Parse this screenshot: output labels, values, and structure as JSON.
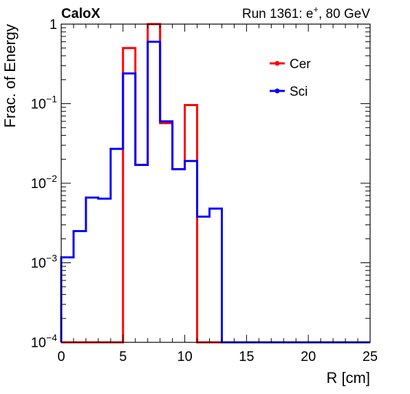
{
  "chart_data": {
    "type": "histogram",
    "label_left": "CaloX",
    "label_right_prefix": "Run 1361: e",
    "label_right_sup": "+",
    "label_right_suffix": ", 80 GeV",
    "xlabel": "R [cm]",
    "ylabel": "Frac. of Energy",
    "xlim": [
      0,
      25
    ],
    "ylim": [
      0.0001,
      1
    ],
    "yscale": "log",
    "x_ticks": [
      "0",
      "5",
      "10",
      "15",
      "20",
      "25"
    ],
    "y_tick_labels": [
      {
        "value": 0.0001,
        "base": "10",
        "exp": "−4"
      },
      {
        "value": 0.001,
        "base": "10",
        "exp": "−3"
      },
      {
        "value": 0.01,
        "base": "10",
        "exp": "−2"
      },
      {
        "value": 0.1,
        "base": "10",
        "exp": "−1"
      },
      {
        "value": 1,
        "base": "1",
        "exp": ""
      }
    ],
    "bin_edges": [
      0,
      1,
      2,
      3,
      4,
      5,
      6,
      7,
      8,
      9,
      10,
      11,
      12,
      13,
      14,
      15,
      16,
      17,
      18,
      19,
      20,
      21,
      22,
      23,
      24,
      25
    ],
    "legend_position": "top-right",
    "series": [
      {
        "name": "Cer",
        "color": "#ff0000",
        "values": [
          0,
          0,
          0,
          0,
          0,
          0.5,
          0.017,
          1.0,
          0.057,
          0.015,
          0.096,
          0,
          0,
          0,
          0,
          0,
          0,
          0,
          0,
          0,
          0,
          0,
          0,
          0,
          0
        ]
      },
      {
        "name": "Sci",
        "color": "#0000ff",
        "values": [
          0.00117,
          0.0025,
          0.0066,
          0.0064,
          0.027,
          0.24,
          0.017,
          0.6,
          0.06,
          0.015,
          0.019,
          0.0038,
          0.0048,
          0,
          0,
          0,
          0,
          0,
          0,
          0,
          0,
          0,
          0,
          0,
          0
        ]
      }
    ]
  }
}
